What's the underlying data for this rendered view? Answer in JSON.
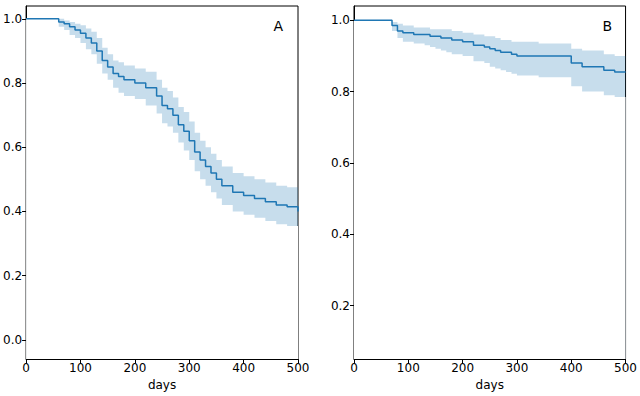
{
  "chart_data": [
    {
      "type": "line",
      "line_style": "step",
      "annotation": "A",
      "xlabel": "days",
      "color": "#1f77b4",
      "grid": false,
      "xlim": [
        0,
        500
      ],
      "xticks": [
        0,
        100,
        200,
        300,
        400,
        500
      ],
      "ylim": [
        -0.06,
        1.04
      ],
      "yticks": [
        {
          "value": 0,
          "label": "0.0"
        },
        0.2,
        0.4,
        0.6,
        0.8,
        {
          "value": 1,
          "label": "1.0"
        }
      ],
      "x": [
        0,
        60,
        70,
        80,
        90,
        100,
        110,
        120,
        130,
        140,
        150,
        160,
        170,
        180,
        200,
        220,
        240,
        250,
        260,
        270,
        280,
        290,
        300,
        310,
        320,
        330,
        340,
        350,
        360,
        380,
        400,
        420,
        440,
        460,
        480,
        500
      ],
      "values": [
        1.0,
        0.99,
        0.985,
        0.975,
        0.965,
        0.955,
        0.94,
        0.925,
        0.9,
        0.87,
        0.85,
        0.83,
        0.82,
        0.81,
        0.8,
        0.785,
        0.76,
        0.73,
        0.72,
        0.7,
        0.67,
        0.65,
        0.62,
        0.585,
        0.56,
        0.54,
        0.52,
        0.5,
        0.48,
        0.46,
        0.45,
        0.44,
        0.43,
        0.42,
        0.415,
        0.4
      ],
      "ci_lower": [
        1.0,
        0.975,
        0.965,
        0.95,
        0.94,
        0.925,
        0.905,
        0.89,
        0.86,
        0.83,
        0.81,
        0.785,
        0.77,
        0.76,
        0.75,
        0.73,
        0.705,
        0.675,
        0.665,
        0.645,
        0.615,
        0.59,
        0.56,
        0.525,
        0.5,
        0.48,
        0.46,
        0.44,
        0.42,
        0.4,
        0.39,
        0.38,
        0.37,
        0.36,
        0.355,
        0.34
      ],
      "ci_upper": [
        1.0,
        1.0,
        0.995,
        0.99,
        0.985,
        0.98,
        0.97,
        0.96,
        0.94,
        0.91,
        0.89,
        0.87,
        0.865,
        0.855,
        0.845,
        0.835,
        0.81,
        0.785,
        0.775,
        0.755,
        0.725,
        0.71,
        0.68,
        0.645,
        0.62,
        0.6,
        0.58,
        0.56,
        0.54,
        0.52,
        0.51,
        0.5,
        0.49,
        0.48,
        0.475,
        0.46
      ]
    },
    {
      "type": "line",
      "line_style": "step",
      "annotation": "B",
      "xlabel": "days",
      "color": "#1f77b4",
      "grid": false,
      "xlim": [
        0,
        500
      ],
      "xticks": [
        0,
        100,
        200,
        300,
        400,
        500
      ],
      "ylim": [
        0.05,
        1.04
      ],
      "yticks": [
        0.2,
        0.4,
        0.6,
        0.8,
        {
          "value": 1,
          "label": "1.0"
        }
      ],
      "x": [
        0,
        60,
        70,
        80,
        90,
        100,
        110,
        120,
        130,
        140,
        150,
        160,
        170,
        180,
        200,
        220,
        240,
        250,
        260,
        270,
        280,
        290,
        300,
        310,
        320,
        330,
        340,
        350,
        360,
        380,
        400,
        420,
        440,
        460,
        480,
        500
      ],
      "values": [
        1.0,
        1.0,
        0.985,
        0.97,
        0.965,
        0.965,
        0.96,
        0.96,
        0.96,
        0.955,
        0.955,
        0.95,
        0.95,
        0.945,
        0.94,
        0.93,
        0.925,
        0.92,
        0.915,
        0.91,
        0.91,
        0.905,
        0.9,
        0.9,
        0.9,
        0.9,
        0.9,
        0.9,
        0.9,
        0.9,
        0.88,
        0.87,
        0.87,
        0.86,
        0.855,
        0.855
      ],
      "ci_lower": [
        1.0,
        1.0,
        0.97,
        0.95,
        0.94,
        0.94,
        0.935,
        0.935,
        0.93,
        0.925,
        0.92,
        0.915,
        0.91,
        0.905,
        0.9,
        0.885,
        0.88,
        0.87,
        0.865,
        0.86,
        0.855,
        0.85,
        0.845,
        0.845,
        0.845,
        0.845,
        0.84,
        0.84,
        0.84,
        0.84,
        0.815,
        0.8,
        0.8,
        0.79,
        0.785,
        0.785
      ],
      "ci_upper": [
        1.0,
        1.0,
        0.995,
        0.99,
        0.985,
        0.985,
        0.98,
        0.98,
        0.98,
        0.975,
        0.975,
        0.975,
        0.975,
        0.97,
        0.965,
        0.96,
        0.955,
        0.955,
        0.95,
        0.945,
        0.945,
        0.94,
        0.94,
        0.94,
        0.94,
        0.94,
        0.935,
        0.935,
        0.935,
        0.935,
        0.92,
        0.915,
        0.915,
        0.905,
        0.9,
        0.9
      ]
    }
  ]
}
